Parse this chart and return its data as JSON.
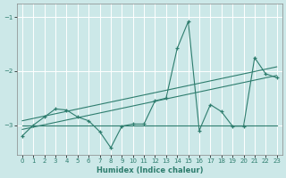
{
  "title": "",
  "xlabel": "Humidex (Indice chaleur)",
  "bg_color": "#cce8e8",
  "grid_color": "#ffffff",
  "line_color": "#2e7d6e",
  "xlim": [
    -0.5,
    23.5
  ],
  "ylim": [
    -3.55,
    -0.75
  ],
  "yticks": [
    -3,
    -2,
    -1
  ],
  "xticks": [
    0,
    1,
    2,
    3,
    4,
    5,
    6,
    7,
    8,
    9,
    10,
    11,
    12,
    13,
    14,
    15,
    16,
    17,
    18,
    19,
    20,
    21,
    22,
    23
  ],
  "main_series_x": [
    0,
    1,
    2,
    3,
    4,
    5,
    6,
    7,
    8,
    9,
    10,
    11,
    12,
    13,
    14,
    15,
    16,
    17,
    18,
    19,
    20,
    21,
    22,
    23
  ],
  "main_series_y": [
    -3.2,
    -3.0,
    -2.85,
    -2.7,
    -2.72,
    -2.85,
    -2.92,
    -3.12,
    -3.42,
    -3.02,
    -2.98,
    -2.98,
    -2.55,
    -2.5,
    -1.58,
    -1.08,
    -3.1,
    -2.62,
    -2.75,
    -3.02,
    -3.02,
    -1.75,
    -2.05,
    -2.12
  ],
  "line1_x": [
    0,
    23
  ],
  "line1_y": [
    -3.0,
    -3.0
  ],
  "line2_x": [
    0,
    23
  ],
  "line2_y": [
    -3.08,
    -2.08
  ],
  "line3_x": [
    0,
    23
  ],
  "line3_y": [
    -2.92,
    -1.92
  ]
}
